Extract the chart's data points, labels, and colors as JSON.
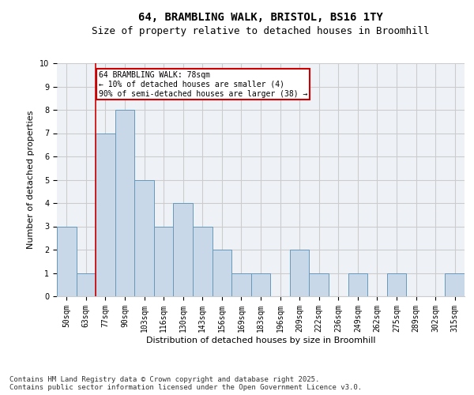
{
  "title_line1": "64, BRAMBLING WALK, BRISTOL, BS16 1TY",
  "title_line2": "Size of property relative to detached houses in Broomhill",
  "xlabel": "Distribution of detached houses by size in Broomhill",
  "ylabel": "Number of detached properties",
  "categories": [
    "50sqm",
    "63sqm",
    "77sqm",
    "90sqm",
    "103sqm",
    "116sqm",
    "130sqm",
    "143sqm",
    "156sqm",
    "169sqm",
    "183sqm",
    "196sqm",
    "209sqm",
    "222sqm",
    "236sqm",
    "249sqm",
    "262sqm",
    "275sqm",
    "289sqm",
    "302sqm",
    "315sqm"
  ],
  "values": [
    3,
    1,
    7,
    8,
    5,
    3,
    4,
    3,
    2,
    1,
    1,
    0,
    2,
    1,
    0,
    1,
    0,
    1,
    0,
    0,
    1
  ],
  "bar_color": "#c8d8e8",
  "bar_edge_color": "#6699bb",
  "vline_x_index": 2,
  "vline_color": "#cc0000",
  "annotation_text": "64 BRAMBLING WALK: 78sqm\n← 10% of detached houses are smaller (4)\n90% of semi-detached houses are larger (38) →",
  "annotation_box_color": "#cc0000",
  "ylim": [
    0,
    10
  ],
  "yticks": [
    0,
    1,
    2,
    3,
    4,
    5,
    6,
    7,
    8,
    9,
    10
  ],
  "grid_color": "#cccccc",
  "background_color": "#eef2f7",
  "footer_line1": "Contains HM Land Registry data © Crown copyright and database right 2025.",
  "footer_line2": "Contains public sector information licensed under the Open Government Licence v3.0.",
  "title_fontsize": 10,
  "subtitle_fontsize": 9,
  "axis_label_fontsize": 8,
  "tick_fontsize": 7,
  "annotation_fontsize": 7,
  "footer_fontsize": 6.5
}
